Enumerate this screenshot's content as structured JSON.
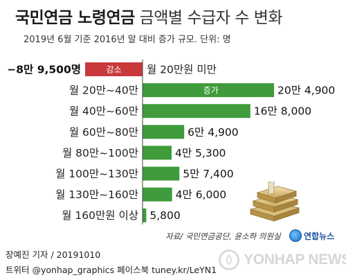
{
  "header": {
    "title_bold": "국민연금 노령연금",
    "title_regular": "금액별 수급자 수 변화",
    "subtitle": "2019년 6월 기준 2016년 말 대비 증가 규모. 단위: 명"
  },
  "chart_data": {
    "type": "bar",
    "orientation": "horizontal",
    "title": "국민연금 노령연금 금액별 수급자 수 변화",
    "subtitle": "2019년 6월 기준 2016년 말 대비 증가 규모. 단위: 명",
    "categories": [
      "월 20만원 미만",
      "월 20만~40만",
      "월 40만~60만",
      "월 60만~80만",
      "월 80만~100만",
      "월 100만~130만",
      "월 130만~160만",
      "월 160만원 이상"
    ],
    "values": [
      -89500,
      204900,
      168000,
      64900,
      45300,
      57400,
      46000,
      5800
    ],
    "value_labels": [
      "−8만 9,500명",
      "20만 4,900",
      "16만 8,000",
      "6만 4,900",
      "4만 5,300",
      "5만 7,400",
      "4만 6,000",
      "5,800"
    ],
    "bar_annotations": {
      "decrease": "감소",
      "increase": "증가"
    },
    "colors": {
      "decrease": "#c8393c",
      "increase": "#3f9b3b"
    }
  },
  "footer": {
    "source": "자료/ 국민연금공단, 윤소하 의원실",
    "reporter": "장예진 기자 / 20191010",
    "social": "트위터 @yonhap_graphics  페이스북 tuney.kr/LeYN1",
    "logo_text": "연합뉴스",
    "watermark": "YONHAP NEWS"
  }
}
